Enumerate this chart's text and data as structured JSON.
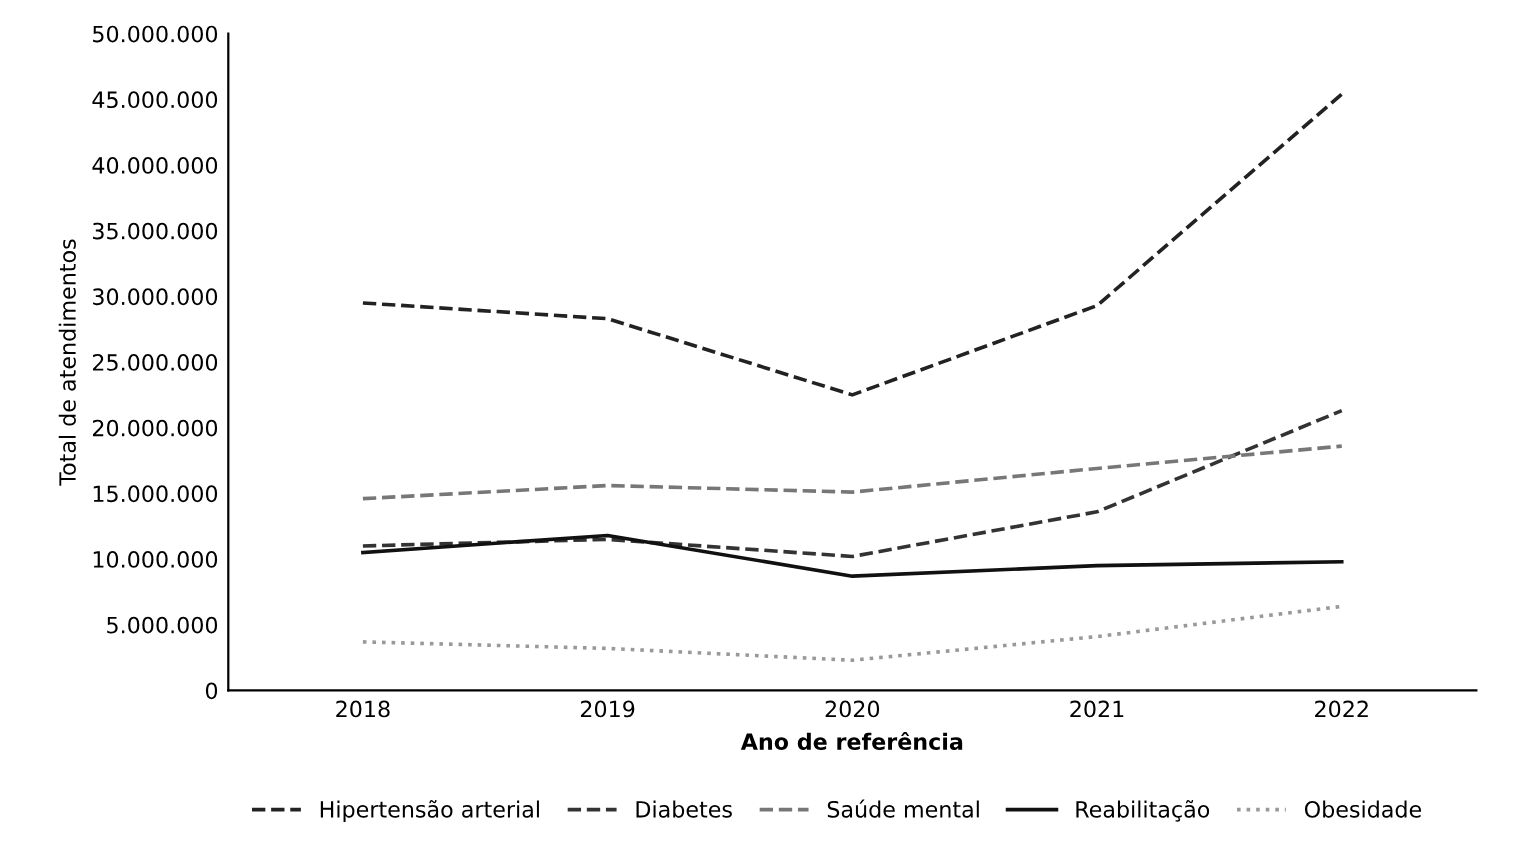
{
  "chart_data": {
    "type": "line",
    "xlabel": "Ano de referência",
    "ylabel": "Total de atendimentos",
    "categories": [
      "2018",
      "2019",
      "2020",
      "2021",
      "2022"
    ],
    "series": [
      {
        "name": "Hipertensão arterial",
        "color": "#222222",
        "line_style": "dashed",
        "values": [
          29500000,
          28300000,
          22500000,
          29300000,
          45400000
        ]
      },
      {
        "name": "Diabetes",
        "color": "#333333",
        "line_style": "dashed",
        "values": [
          11000000,
          11500000,
          10200000,
          13600000,
          21300000
        ]
      },
      {
        "name": "Saúde mental",
        "color": "#777777",
        "line_style": "dashed",
        "values": [
          14600000,
          15600000,
          15100000,
          16900000,
          18600000
        ]
      },
      {
        "name": "Reabilitação",
        "color": "#111111",
        "line_style": "solid",
        "values": [
          10500000,
          11800000,
          8700000,
          9500000,
          9800000
        ]
      },
      {
        "name": "Obesidade",
        "color": "#999999",
        "line_style": "dotted",
        "values": [
          3700000,
          3200000,
          2300000,
          4100000,
          6400000
        ]
      }
    ],
    "ylim": [
      0,
      50000000
    ],
    "yticks": [
      0,
      {
        "value": 5000000,
        "label": "5.000.000"
      },
      {
        "value": 10000000,
        "label": "10.000.000"
      },
      {
        "value": 15000000,
        "label": "15.000.000"
      },
      {
        "value": 20000000,
        "label": "20.000.000"
      },
      {
        "value": 25000000,
        "label": "25.000.000"
      },
      {
        "value": 30000000,
        "label": "30.000.000"
      },
      {
        "value": 35000000,
        "label": "35.000.000"
      },
      {
        "value": 40000000,
        "label": "40.000.000"
      },
      {
        "value": 45000000,
        "label": "45.000.000"
      },
      {
        "value": 50000000,
        "label": "50.000.000"
      }
    ],
    "grid": false,
    "legend": "bottom",
    "marker": "none"
  }
}
